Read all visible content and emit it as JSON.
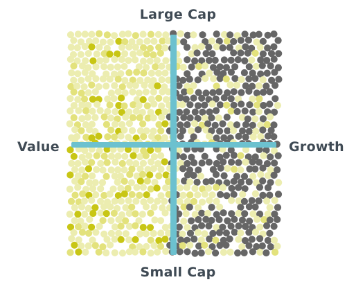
{
  "labels": {
    "top": "Large Cap",
    "bottom": "Small Cap",
    "left": "Value",
    "right": "Growth"
  },
  "colors": {
    "axis": "#6cc1cf",
    "value_light": "#ecedb0",
    "value_mid": "#e3e27c",
    "value_dark": "#c8c615",
    "growth_dark": "#666666",
    "label_text": "#3f4a54"
  }
}
